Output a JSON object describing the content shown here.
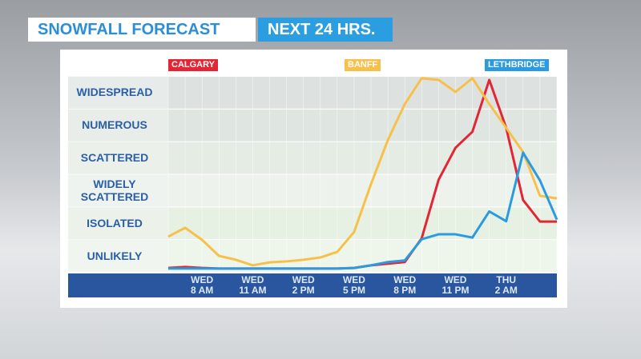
{
  "chart_data": {
    "type": "line",
    "title": "SNOWFALL FORECAST",
    "subtitle": "NEXT 24 HRS.",
    "categories": [
      null,
      null,
      "WED\n8 AM",
      null,
      null,
      "WED\n11 AM",
      null,
      null,
      "WED\n2 PM",
      null,
      null,
      "WED\n5 PM",
      null,
      null,
      "WED\n8 PM",
      null,
      null,
      "WED\n11 PM",
      null,
      null,
      "THU\n2 AM",
      null,
      null,
      null
    ],
    "ylim": [
      0,
      6
    ],
    "yticks": [
      {
        "value": 0.5,
        "label": "UNLIKELY"
      },
      {
        "value": 1.5,
        "label": "ISOLATED"
      },
      {
        "value": 2.5,
        "label": "WIDELY\nSCATTERED"
      },
      {
        "value": 3.5,
        "label": "SCATTERED"
      },
      {
        "value": 4.5,
        "label": "NUMEROUS"
      },
      {
        "value": 5.5,
        "label": "WIDESPREAD"
      }
    ],
    "grid": false,
    "series": [
      {
        "name": "CALGARY",
        "color": "#e32636",
        "values": [
          0.12,
          0.15,
          0.12,
          0.1,
          0.1,
          0.1,
          0.1,
          0.1,
          0.1,
          0.1,
          0.1,
          0.12,
          0.2,
          0.25,
          0.3,
          1.03,
          2.82,
          3.8,
          4.29,
          5.88,
          4.41,
          2.2,
          1.54,
          1.54
        ]
      },
      {
        "name": "BANFF",
        "color": "#f7c04a",
        "values": [
          1.08,
          1.35,
          0.98,
          0.49,
          0.37,
          0.2,
          0.29,
          0.32,
          0.37,
          0.44,
          0.61,
          1.22,
          2.69,
          4.04,
          5.14,
          5.93,
          5.88,
          5.51,
          5.93,
          5.14,
          4.41,
          3.67,
          2.33,
          2.25
        ]
      },
      {
        "name": "LETHBRIDGE",
        "color": "#2b9be0",
        "values": [
          0.1,
          0.1,
          0.1,
          0.1,
          0.1,
          0.1,
          0.1,
          0.1,
          0.1,
          0.1,
          0.1,
          0.12,
          0.2,
          0.3,
          0.35,
          1.0,
          1.15,
          1.15,
          1.05,
          1.85,
          1.55,
          3.65,
          2.8,
          1.6
        ]
      }
    ]
  }
}
